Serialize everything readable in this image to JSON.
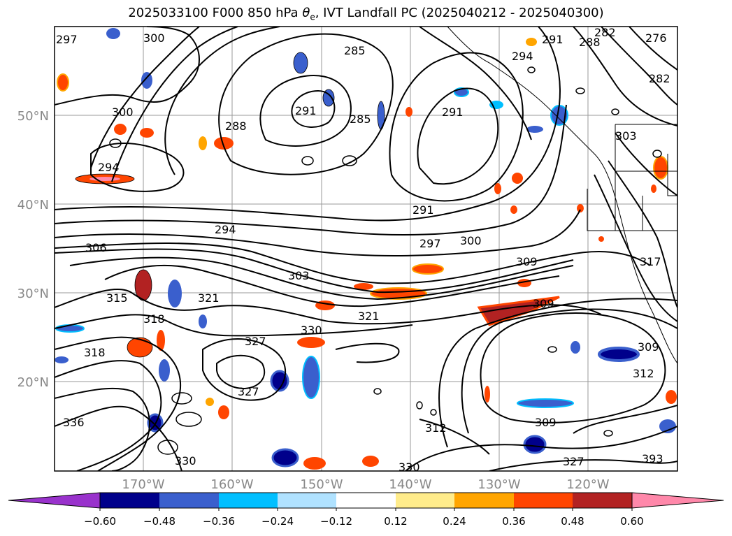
{
  "title": {
    "prefix": "2025033100 F000 850 hPa ",
    "theta": "θ",
    "theta_sub": "e",
    "suffix": ", IVT Landfall PC (2025040212 - 2025040300)"
  },
  "map": {
    "lat_labels": [
      "50°N",
      "40°N",
      "30°N",
      "20°N"
    ],
    "lon_labels": [
      "170°W",
      "160°W",
      "150°W",
      "140°W",
      "130°W",
      "120°W"
    ],
    "gridlines": true,
    "contour_labels": [
      "297",
      "300",
      "285",
      "291",
      "285",
      "288",
      "291",
      "300",
      "294",
      "291",
      "294",
      "297",
      "300",
      "306",
      "315",
      "318",
      "318",
      "321",
      "327",
      "330",
      "321",
      "309",
      "309",
      "309",
      "312",
      "309",
      "336",
      "330",
      "330",
      "303",
      "282",
      "288",
      "294",
      "291",
      "276",
      "282",
      "303",
      "317",
      "312",
      "327",
      "327",
      "393"
    ]
  },
  "colorbar": {
    "ticks": [
      "−0.60",
      "−0.48",
      "−0.36",
      "−0.24",
      "−0.12",
      "0.12",
      "0.24",
      "0.36",
      "0.48",
      "0.60"
    ],
    "colors": [
      "#9932CC",
      "#00008B",
      "#3A5FCD",
      "#00BFFF",
      "#B0E2FF",
      "#FFFFFF",
      "#FFEC8B",
      "#FFA500",
      "#FF4500",
      "#B22222",
      "#FF88AA"
    ]
  }
}
